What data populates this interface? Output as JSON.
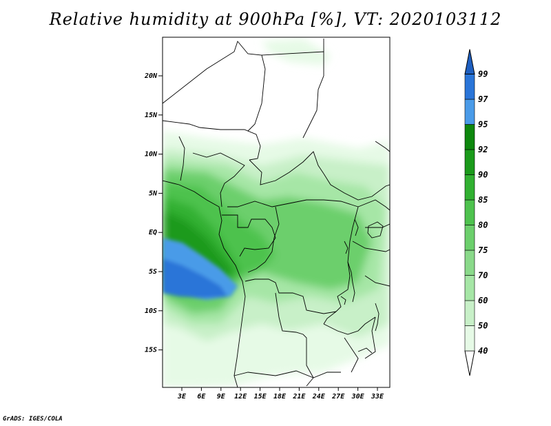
{
  "title": "Relative humidity at 900hPa [%], VT: 2020103112",
  "credit": "GrADS: IGES/COLA",
  "map": {
    "lat_ticks": [
      "20N",
      "15N",
      "10N",
      "5N",
      "EQ",
      "5S",
      "10S",
      "15S"
    ],
    "lon_ticks": [
      "3E",
      "6E",
      "9E",
      "12E",
      "15E",
      "18E",
      "21E",
      "24E",
      "27E",
      "30E",
      "33E"
    ]
  },
  "colorbar": {
    "levels": [
      "40",
      "50",
      "60",
      "70",
      "75",
      "80",
      "85",
      "90",
      "92",
      "95",
      "97",
      "99"
    ],
    "colors": [
      "#ffffff",
      "#e6fae6",
      "#c8f0c8",
      "#a6e6a6",
      "#8ad98a",
      "#6ccf6c",
      "#4ec24e",
      "#31b031",
      "#1a9a1a",
      "#0d870d",
      "#4a9be8",
      "#2a75d8",
      "#1e5fc0"
    ]
  }
}
